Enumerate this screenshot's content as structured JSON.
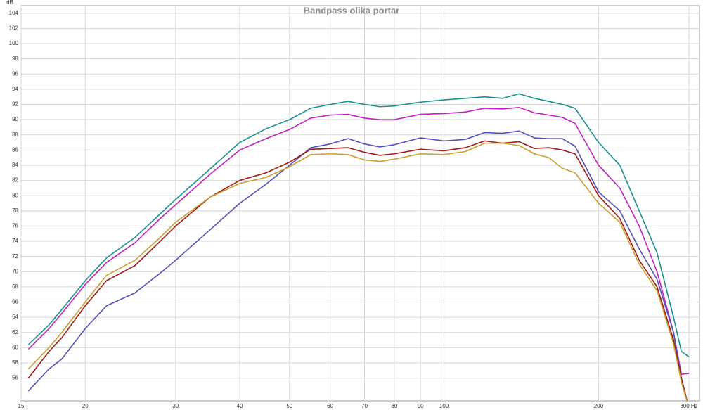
{
  "chart_data": {
    "type": "line",
    "title": "Bandpass olika portar",
    "y_label": "dB",
    "log_x": true,
    "grid": true,
    "xlim": [
      15,
      300
    ],
    "ylim": [
      53,
      105
    ],
    "xticks": [
      15,
      20,
      30,
      40,
      50,
      60,
      70,
      80,
      90,
      100,
      200,
      {
        "value": 300,
        "label": "300 Hz"
      }
    ],
    "yticks": [
      56,
      58,
      60,
      62,
      64,
      66,
      68,
      70,
      72,
      74,
      76,
      78,
      80,
      82,
      84,
      86,
      88,
      90,
      92,
      94,
      96,
      98,
      100,
      102,
      104
    ],
    "x": [
      15.5,
      17,
      18,
      20,
      22,
      25,
      28,
      30,
      35,
      40,
      45,
      50,
      55,
      60,
      65,
      70,
      75,
      80,
      90,
      100,
      110,
      120,
      130,
      140,
      150,
      160,
      170,
      180,
      200,
      220,
      240,
      260,
      280,
      290,
      300
    ],
    "series": [
      {
        "color": "#1a9090",
        "values": [
          60.4,
          63,
          65,
          68.8,
          71.8,
          74.5,
          77.6,
          79.5,
          83.5,
          87,
          88.8,
          90,
          91.5,
          92,
          92.4,
          92,
          91.7,
          91.8,
          92.3,
          92.6,
          92.8,
          93,
          92.8,
          93.4,
          92.8,
          92.4,
          92,
          91.5,
          87,
          84,
          78,
          72.5,
          64,
          59.5,
          58.8
        ]
      },
      {
        "color": "#c020c0",
        "values": [
          59.8,
          62.5,
          64.5,
          68.3,
          71.2,
          73.8,
          77,
          78.8,
          82.8,
          86,
          87.5,
          88.7,
          90.2,
          90.6,
          90.7,
          90.2,
          90,
          90,
          90.7,
          90.8,
          91,
          91.5,
          91.4,
          91.6,
          90.9,
          90.6,
          90.3,
          89.5,
          84,
          81,
          76,
          70,
          62,
          56.5,
          56.6
        ]
      },
      {
        "color": "#5050b8",
        "values": [
          54.3,
          57.2,
          58.5,
          62.5,
          65.5,
          67.2,
          69.8,
          71.5,
          75.5,
          79,
          81.5,
          84,
          86.3,
          86.8,
          87.5,
          86.8,
          86.4,
          86.7,
          87.6,
          87.2,
          87.4,
          88.3,
          88.2,
          88.5,
          87.6,
          87.5,
          87.5,
          86.5,
          80.5,
          78,
          73,
          69,
          62,
          56,
          52
        ]
      },
      {
        "color": "#a01818",
        "values": [
          56,
          59.5,
          61.3,
          65.5,
          68.8,
          70.8,
          74,
          76,
          79.8,
          82,
          83,
          84.4,
          86.1,
          86.2,
          86.3,
          85.7,
          85.3,
          85.5,
          86.1,
          85.9,
          86.3,
          87.2,
          86.9,
          87.1,
          86.2,
          86.3,
          86,
          85.5,
          80,
          77,
          71.5,
          68,
          61,
          56,
          52
        ]
      },
      {
        "color": "#c8a030",
        "values": [
          57.2,
          60,
          62,
          66,
          69.5,
          71.5,
          74.5,
          76.5,
          79.8,
          81.6,
          82.4,
          83.8,
          85.4,
          85.5,
          85.4,
          84.7,
          84.5,
          84.8,
          85.5,
          85.4,
          85.8,
          86.9,
          86.9,
          86.6,
          85.5,
          85,
          83.6,
          83,
          79,
          76.5,
          71,
          67.5,
          60.5,
          55.5,
          52
        ]
      }
    ]
  }
}
